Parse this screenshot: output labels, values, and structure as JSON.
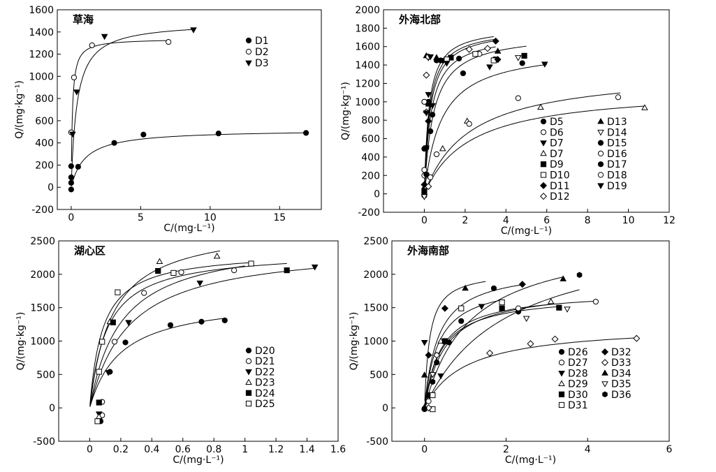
{
  "figure": {
    "description_free": true
  },
  "chart_data": [
    {
      "type": "scatter",
      "title": "草海",
      "xlabel": "C/(mg·L⁻¹)",
      "ylabel": "Q/(mg·kg⁻¹)",
      "xlim": [
        -1,
        18
      ],
      "ylim": [
        -200,
        1600
      ],
      "xticks": [
        0,
        5,
        10,
        15
      ],
      "yticks": [
        -200,
        0,
        200,
        400,
        600,
        800,
        1000,
        1200,
        1400,
        1600
      ],
      "legend_columns": 1,
      "legend_position": "upper-right",
      "series": [
        {
          "name": "D1",
          "marker": "dot",
          "points": [
            [
              0.0,
              -20
            ],
            [
              0.0,
              40
            ],
            [
              0.0,
              90
            ],
            [
              0.0,
              190
            ],
            [
              0.5,
              185
            ],
            [
              3.1,
              400
            ],
            [
              5.2,
              475
            ],
            [
              10.6,
              485
            ],
            [
              16.9,
              490
            ]
          ],
          "curve": {
            "qmax": 520,
            "k": 1.0
          }
        },
        {
          "name": "D2",
          "marker": "circle",
          "points": [
            [
              0.0,
              495
            ],
            [
              0.2,
              990
            ],
            [
              1.5,
              1280
            ],
            [
              7.0,
              1310
            ]
          ],
          "curve": {
            "qmax": 1340,
            "k": 11,
            "xmax": 7.0
          }
        },
        {
          "name": "D3",
          "marker": "tri-down",
          "points": [
            [
              0.1,
              480
            ],
            [
              0.4,
              860
            ],
            [
              2.4,
              1360
            ],
            [
              8.8,
              1420
            ]
          ],
          "curve": {
            "qmax": 1490,
            "k": 2.4,
            "xmax": 8.8
          }
        }
      ]
    },
    {
      "type": "scatter",
      "title": "外海北部",
      "xlabel": "C/(mg·L⁻¹)",
      "ylabel": "Q/(mg·kg⁻¹)",
      "xlim": [
        -2,
        12
      ],
      "ylim": [
        -200,
        2000
      ],
      "xticks": [
        0,
        2,
        4,
        6,
        8,
        10,
        12
      ],
      "yticks": [
        -200,
        0,
        200,
        400,
        600,
        800,
        1000,
        1200,
        1400,
        1600,
        1800,
        2000
      ],
      "legend_columns": 2,
      "legend_position": "lower-right",
      "series": [
        {
          "name": "D5",
          "marker": "dot",
          "points": [
            [
              0.0,
              50
            ],
            [
              0.1,
              500
            ],
            [
              0.2,
              1000
            ],
            [
              0.4,
              860
            ],
            [
              0.8,
              1450
            ],
            [
              1.9,
              1310
            ],
            [
              4.8,
              1420
            ]
          ],
          "curve": {
            "qmax": 1600,
            "k": 1.2,
            "xmax": 6.0
          }
        },
        {
          "name": "D6",
          "marker": "circle",
          "points": [
            [
              0.0,
              -20
            ],
            [
              0.0,
              260
            ],
            [
              0.2,
              1490
            ],
            [
              0.6,
              430
            ],
            [
              2.7,
              1520
            ],
            [
              4.6,
              1040
            ],
            [
              9.5,
              1050
            ]
          ],
          "curve": {
            "qmax": 1350,
            "k": 0.45,
            "xmax": 9.6
          }
        },
        {
          "name": "D7",
          "marker": "tri-down",
          "points": [
            [
              0.1,
              500
            ],
            [
              0.4,
              960
            ],
            [
              0.9,
              1450
            ],
            [
              3.2,
              1380
            ],
            [
              5.9,
              1410
            ]
          ],
          "curve": {
            "qmax": 1750,
            "k": 3.0,
            "xmax": 3.5
          }
        },
        {
          "name": "D7",
          "marker": "tri-up-open",
          "points": [
            [
              0.1,
              80
            ],
            [
              0.9,
              490
            ],
            [
              2.1,
              790
            ],
            [
              5.7,
              940
            ],
            [
              10.8,
              935
            ]
          ],
          "curve": {
            "qmax": 1150,
            "k": 0.45,
            "xmax": 10.8
          }
        },
        {
          "name": "D9",
          "marker": "square",
          "points": [
            [
              0.0,
              20
            ],
            [
              0.2,
              980
            ],
            [
              1.3,
              1480
            ],
            [
              3.5,
              1460
            ],
            [
              4.9,
              1500
            ]
          ],
          "curve": {
            "qmax": 1750,
            "k": 2.2,
            "xmax": 5.0
          }
        },
        {
          "name": "D10",
          "marker": "square-open",
          "points": [
            [
              0.1,
              200
            ],
            [
              1.1,
              1460
            ],
            [
              2.5,
              1520
            ],
            [
              3.4,
              1450
            ]
          ],
          "curve": {
            "qmax": 1800,
            "k": 4.0,
            "xmax": 3.5
          }
        },
        {
          "name": "D11",
          "marker": "diamond",
          "points": [
            [
              0.0,
              100
            ],
            [
              0.2,
              790
            ],
            [
              3.5,
              1660
            ],
            [
              3.6,
              1460
            ]
          ],
          "curve": {
            "qmax": 1800,
            "k": 3.5,
            "xmax": 3.5
          }
        },
        {
          "name": "D12",
          "marker": "diamond-open",
          "points": [
            [
              0.1,
              890
            ],
            [
              0.1,
              1290
            ],
            [
              0.2,
              80
            ],
            [
              2.2,
              1570
            ],
            [
              3.1,
              1580
            ]
          ],
          "curve": {
            "qmax": 1820,
            "k": 4.5,
            "xmax": 3.4
          }
        },
        {
          "name": "D13",
          "marker": "tri-up",
          "points": [
            [
              0.1,
              1500
            ],
            [
              0.6,
              1480
            ],
            [
              3.6,
              1550
            ]
          ],
          "curve": null
        },
        {
          "name": "D14",
          "marker": "tri-down-open",
          "points": [
            [
              0.0,
              -30
            ],
            [
              0.2,
              1480
            ],
            [
              4.6,
              1480
            ]
          ],
          "curve": null
        },
        {
          "name": "D15",
          "marker": "dot",
          "points": [
            [
              0.0,
              1000
            ],
            [
              0.3,
              680
            ],
            [
              1.7,
              1470
            ]
          ],
          "curve": null
        },
        {
          "name": "D16",
          "marker": "circle",
          "points": [
            [
              0.0,
              200
            ],
            [
              0.2,
              1490
            ],
            [
              0.3,
              180
            ]
          ],
          "curve": null
        },
        {
          "name": "D17",
          "marker": "dot",
          "points": [
            [
              0.0,
              490
            ],
            [
              0.6,
              1450
            ],
            [
              0.1,
              210
            ]
          ],
          "curve": null
        },
        {
          "name": "D18",
          "marker": "circle",
          "points": [
            [
              0.0,
              1000
            ],
            [
              2.2,
              760
            ]
          ],
          "curve": null
        },
        {
          "name": "D19",
          "marker": "tri-down",
          "points": [
            [
              0.1,
              880
            ],
            [
              0.2,
              1080
            ],
            [
              0.3,
              1490
            ],
            [
              1.1,
              1420
            ]
          ],
          "curve": null
        }
      ]
    },
    {
      "type": "scatter",
      "title": "湖心区",
      "xlabel": "C/(mg·L⁻¹)",
      "ylabel": "Q/(mg·kg⁻¹)",
      "xlim": [
        -0.2,
        1.6
      ],
      "ylim": [
        -500,
        2500
      ],
      "xticks": [
        0,
        0.2,
        0.4,
        0.6,
        0.8,
        1.0,
        1.2,
        1.4,
        1.6
      ],
      "yticks": [
        -500,
        0,
        500,
        1000,
        1500,
        2000,
        2500
      ],
      "legend_columns": 1,
      "legend_position": "lower-right",
      "series": [
        {
          "name": "D20",
          "marker": "dot",
          "points": [
            [
              0.07,
              -200
            ],
            [
              0.13,
              540
            ],
            [
              0.23,
              980
            ],
            [
              0.52,
              1240
            ],
            [
              0.72,
              1290
            ],
            [
              0.87,
              1310
            ]
          ],
          "curve": {
            "qmax": 1650,
            "k": 5.0,
            "xmax": 0.86
          }
        },
        {
          "name": "D21",
          "marker": "circle",
          "points": [
            [
              0.08,
              -110
            ],
            [
              0.08,
              90
            ],
            [
              0.16,
              990
            ],
            [
              0.35,
              1720
            ],
            [
              0.59,
              2030
            ],
            [
              0.93,
              2060
            ]
          ],
          "curve": {
            "qmax": 2550,
            "k": 5.0,
            "xmax": 1.0
          }
        },
        {
          "name": "D22",
          "marker": "tri-down",
          "points": [
            [
              0.06,
              -90
            ],
            [
              0.12,
              530
            ],
            [
              0.25,
              1280
            ],
            [
              0.71,
              1870
            ],
            [
              1.45,
              2110
            ]
          ],
          "curve": {
            "qmax": 2450,
            "k": 4.0,
            "xmax": 1.45
          }
        },
        {
          "name": "D23",
          "marker": "tri-up-open",
          "points": [
            [
              0.06,
              -130
            ],
            [
              0.13,
              1290
            ],
            [
              0.45,
              2190
            ],
            [
              0.82,
              2270
            ]
          ],
          "curve": {
            "qmax": 2750,
            "k": 7.0,
            "xmax": 0.84
          }
        },
        {
          "name": "D24",
          "marker": "square",
          "points": [
            [
              0.06,
              80
            ],
            [
              0.15,
              1280
            ],
            [
              0.44,
              2050
            ],
            [
              1.27,
              2060
            ]
          ],
          "curve": {
            "qmax": 2350,
            "k": 9.0,
            "xmax": 1.27
          }
        },
        {
          "name": "D25",
          "marker": "square-open",
          "points": [
            [
              0.05,
              -200
            ],
            [
              0.08,
              990
            ],
            [
              0.06,
              540
            ],
            [
              0.18,
              1730
            ],
            [
              0.54,
              2020
            ],
            [
              1.04,
              2160
            ]
          ],
          "curve": {
            "qmax": 2350,
            "k": 12.0,
            "xmax": 1.04
          }
        }
      ]
    },
    {
      "type": "scatter",
      "title": "外海南部",
      "xlabel": "C/(mg·L⁻¹)",
      "ylabel": "Q/(mg·kg⁻¹)",
      "xlim": [
        -0.8,
        6
      ],
      "ylim": [
        -500,
        2500
      ],
      "xticks": [
        0,
        2,
        4,
        6
      ],
      "yticks": [
        -500,
        0,
        500,
        1000,
        1500,
        2000,
        2500
      ],
      "legend_columns": 2,
      "legend_position": "lower-right",
      "series": [
        {
          "name": "D26",
          "marker": "dot",
          "points": [
            [
              0.0,
              -20
            ],
            [
              0.3,
              680
            ],
            [
              0.9,
              1300
            ],
            [
              1.7,
              1790
            ],
            [
              2.3,
              1440
            ]
          ],
          "curve": {
            "qmax": 2600,
            "k": 0.9,
            "xmax": 3.4
          }
        },
        {
          "name": "D27",
          "marker": "circle",
          "points": [
            [
              0.1,
              100
            ],
            [
              0.5,
              990
            ],
            [
              2.3,
              1490
            ],
            [
              4.2,
              1590
            ]
          ],
          "curve": {
            "qmax": 1750,
            "k": 2.5,
            "xmax": 4.2
          }
        },
        {
          "name": "D28",
          "marker": "tri-down",
          "points": [
            [
              0.0,
              980
            ],
            [
              0.4,
              480
            ],
            [
              1.4,
              1520
            ]
          ],
          "curve": null
        },
        {
          "name": "D29",
          "marker": "tri-up-open",
          "points": [
            [
              0.0,
              10
            ],
            [
              0.4,
              1000
            ],
            [
              3.1,
              1590
            ]
          ],
          "curve": {
            "qmax": 1800,
            "k": 2.0,
            "xmax": 3.2
          }
        },
        {
          "name": "D30",
          "marker": "square",
          "points": [
            [
              0.1,
              190
            ],
            [
              0.5,
              1000
            ],
            [
              1.9,
              1490
            ],
            [
              3.3,
              1500
            ]
          ],
          "curve": {
            "qmax": 1700,
            "k": 2.5,
            "xmax": 3.3
          }
        },
        {
          "name": "D31",
          "marker": "square-open",
          "points": [
            [
              0.2,
              -20
            ],
            [
              0.2,
              190
            ],
            [
              0.9,
              1490
            ],
            [
              1.9,
              1580
            ]
          ],
          "curve": {
            "qmax": 1900,
            "k": 3.0,
            "xmax": 1.9
          }
        },
        {
          "name": "D32",
          "marker": "diamond",
          "points": [
            [
              0.1,
              790
            ],
            [
              0.5,
              1490
            ],
            [
              2.4,
              1850
            ]
          ],
          "curve": {
            "qmax": 2100,
            "k": 3.0,
            "xmax": 2.4
          }
        },
        {
          "name": "D33",
          "marker": "diamond-open",
          "points": [
            [
              0.1,
              0
            ],
            [
              0.3,
              790
            ],
            [
              1.6,
              820
            ],
            [
              2.6,
              960
            ],
            [
              3.2,
              1030
            ],
            [
              5.2,
              1040
            ]
          ],
          "curve": {
            "qmax": 1250,
            "k": 1.0,
            "xmax": 5.2
          }
        },
        {
          "name": "D34",
          "marker": "tri-up",
          "points": [
            [
              0.0,
              490
            ],
            [
              1.0,
              1790
            ],
            [
              3.4,
              1930
            ]
          ],
          "curve": {
            "qmax": 2050,
            "k": 8.0,
            "xmax": 1.5
          }
        },
        {
          "name": "D35",
          "marker": "tri-down-open",
          "points": [
            [
              0.2,
              500
            ],
            [
              2.5,
              1340
            ],
            [
              3.5,
              1480
            ]
          ],
          "curve": null
        },
        {
          "name": "D36",
          "marker": "hexagon",
          "points": [
            [
              0.0,
              -10
            ],
            [
              0.2,
              390
            ],
            [
              0.6,
              980
            ],
            [
              3.8,
              1990
            ]
          ],
          "curve": {
            "qmax": 2700,
            "k": 0.5,
            "xmax": 3.8
          }
        }
      ]
    }
  ]
}
